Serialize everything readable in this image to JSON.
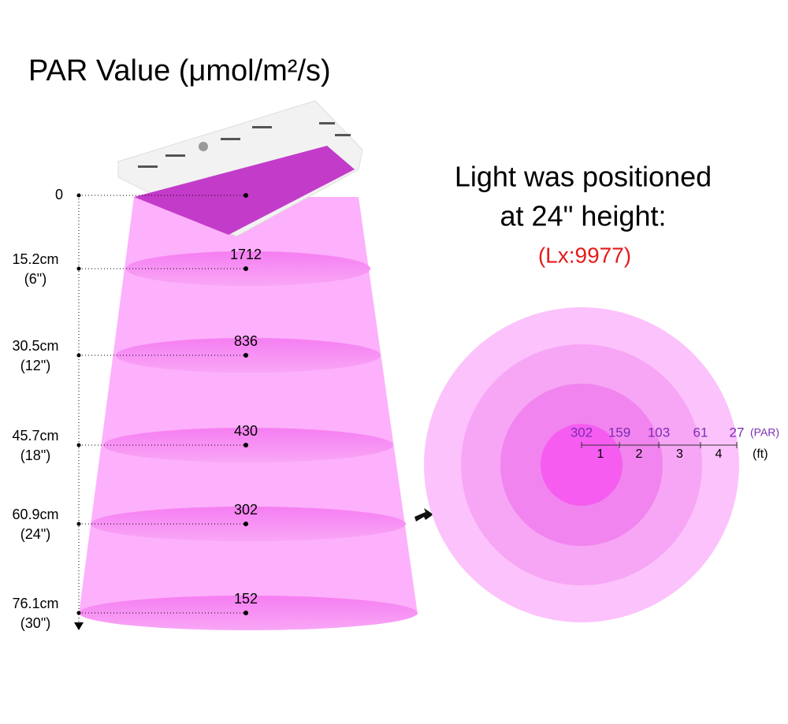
{
  "title": "PAR Value (μmol/m²/s)",
  "levels": [
    {
      "distance": "0",
      "par": null
    },
    {
      "distance": "15.2cm",
      "inches": "(6\")",
      "par": "1712"
    },
    {
      "distance": "30.5cm",
      "inches": "(12\")",
      "par": "836"
    },
    {
      "distance": "45.7cm",
      "inches": "(18\")",
      "par": "430"
    },
    {
      "distance": "60.9cm",
      "inches": "(24\")",
      "par": "302"
    },
    {
      "distance": "76.1cm",
      "inches": "(30\")",
      "par": "152"
    }
  ],
  "note": {
    "line1": "Light was positioned",
    "line2": "at 24\" height:",
    "lux": "(Lx:9977)"
  },
  "footprint": {
    "par": [
      "302",
      "159",
      "103",
      "61",
      "27"
    ],
    "par_unit": "(PAR)",
    "feet": [
      "1",
      "2",
      "3",
      "4"
    ],
    "feet_unit": "(ft)"
  }
}
